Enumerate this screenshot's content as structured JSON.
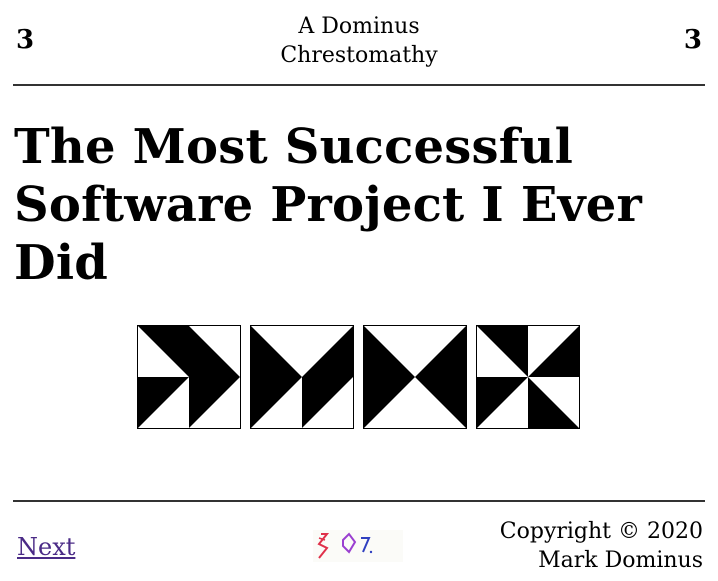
{
  "header": {
    "chapter_left": "3",
    "book_title_line1": "A Dominus",
    "book_title_line2": "Chrestomathy",
    "chapter_right": "3"
  },
  "article": {
    "title": "The Most Successful Software Project I Ever Did"
  },
  "figure": {
    "tile_icons": [
      "pinwheel-tile-1",
      "pinwheel-tile-2",
      "pinwheel-tile-3",
      "pinwheel-tile-4"
    ]
  },
  "footer": {
    "next_label": "Next",
    "copyright_line1": "Copyright © 2020",
    "copyright_line2": "Mark Dominus"
  },
  "colors": {
    "link": "#4a2a86",
    "logo_red": "#e0304a",
    "logo_purple": "#9a3fd0",
    "logo_blue": "#3040c0"
  }
}
